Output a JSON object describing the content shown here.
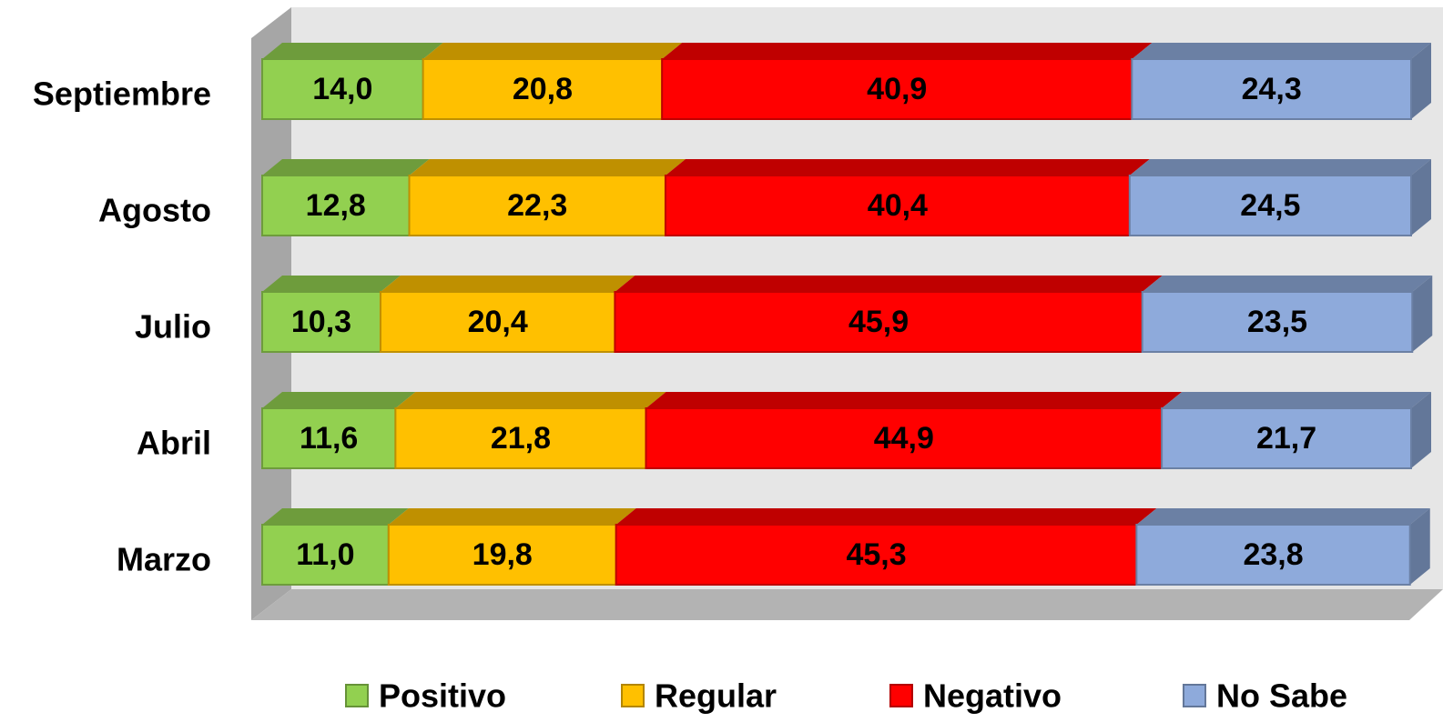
{
  "chart_data": {
    "type": "stacked_bar_3d",
    "categories": [
      "Septiembre",
      "Agosto",
      "Julio",
      "Abril",
      "Marzo"
    ],
    "series": [
      {
        "name": "Positivo",
        "color": "#92d050",
        "values": [
          14.0,
          12.8,
          10.3,
          11.6,
          11.0
        ],
        "value_labels": [
          "14,0",
          "12,8",
          "10,3",
          "11,6",
          "11,0"
        ]
      },
      {
        "name": "Regular",
        "color": "#ffc000",
        "values": [
          20.8,
          22.3,
          20.4,
          21.8,
          19.8
        ],
        "value_labels": [
          "20,8",
          "22,3",
          "20,4",
          "21,8",
          "19,8"
        ]
      },
      {
        "name": "Negativo",
        "color": "#ff0000",
        "values": [
          40.9,
          40.4,
          45.9,
          44.9,
          45.3
        ],
        "value_labels": [
          "40,9",
          "40,4",
          "45,9",
          "44,9",
          "45,3"
        ]
      },
      {
        "name": "No Sabe",
        "color": "#8eaadb",
        "values": [
          24.3,
          24.5,
          23.5,
          21.7,
          23.8
        ],
        "value_labels": [
          "24,3",
          "24,5",
          "23,5",
          "21,7",
          "23,8"
        ]
      }
    ],
    "xlim": [
      0,
      100
    ],
    "legend": "bottom"
  }
}
